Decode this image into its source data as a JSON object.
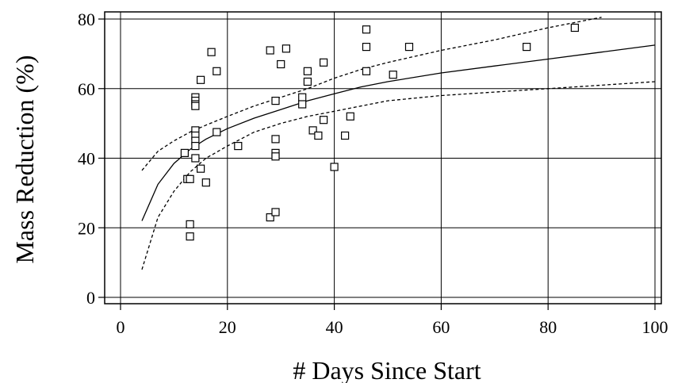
{
  "chart_data": {
    "type": "scatter",
    "title": "",
    "xlabel": "# Days Since Start",
    "ylabel": "Mass Reduction (%)",
    "xlim": [
      0,
      100
    ],
    "ylim": [
      0,
      80
    ],
    "x_ticks": [
      0,
      20,
      40,
      60,
      80,
      100
    ],
    "y_ticks": [
      0,
      20,
      40,
      60,
      80
    ],
    "grid": true,
    "legend": "none",
    "colors": {
      "ink": "#000000",
      "background": "#ffffff"
    },
    "series": [
      {
        "type": "scatter",
        "marker": "open-square",
        "points": [
          [
            12,
            41.5
          ],
          [
            12.5,
            34
          ],
          [
            13,
            21
          ],
          [
            13,
            17.5
          ],
          [
            13,
            34
          ],
          [
            14,
            57.5
          ],
          [
            14,
            56.5
          ],
          [
            14,
            55.5
          ],
          [
            14,
            55
          ],
          [
            14,
            48
          ],
          [
            14,
            46.5
          ],
          [
            14,
            45
          ],
          [
            14,
            43.5
          ],
          [
            14,
            40
          ],
          [
            15,
            37
          ],
          [
            15,
            62.5
          ],
          [
            16,
            33
          ],
          [
            17,
            70.5
          ],
          [
            18,
            65
          ],
          [
            18,
            47.5
          ],
          [
            22,
            43.5
          ],
          [
            28,
            71
          ],
          [
            28,
            23
          ],
          [
            29,
            24.5
          ],
          [
            29,
            56.5
          ],
          [
            29,
            45.5
          ],
          [
            29,
            41.5
          ],
          [
            29,
            40.5
          ],
          [
            30,
            67
          ],
          [
            31,
            71.5
          ],
          [
            34,
            57.5
          ],
          [
            34,
            55.5
          ],
          [
            35,
            65
          ],
          [
            35,
            62
          ],
          [
            36,
            48
          ],
          [
            37,
            46.5
          ],
          [
            38,
            67.5
          ],
          [
            38,
            51
          ],
          [
            40,
            37.5
          ],
          [
            42,
            46.5
          ],
          [
            43,
            52
          ],
          [
            46,
            77
          ],
          [
            46,
            72
          ],
          [
            46,
            65
          ],
          [
            51,
            64
          ],
          [
            54,
            72
          ],
          [
            76,
            72
          ],
          [
            85,
            77.5
          ]
        ]
      },
      {
        "type": "line",
        "style": "solid",
        "points": [
          [
            4,
            22
          ],
          [
            7,
            32.5
          ],
          [
            10,
            38.5
          ],
          [
            13,
            42.5
          ],
          [
            16,
            45.5
          ],
          [
            20,
            48.5
          ],
          [
            25,
            51.5
          ],
          [
            30,
            54
          ],
          [
            35,
            56.5
          ],
          [
            40,
            58.5
          ],
          [
            45,
            60.5
          ],
          [
            50,
            62
          ],
          [
            60,
            64.5
          ],
          [
            70,
            66.5
          ],
          [
            80,
            68.5
          ],
          [
            90,
            70.5
          ],
          [
            100,
            72.5
          ]
        ]
      },
      {
        "type": "line",
        "style": "dashed",
        "points": [
          [
            4,
            36.5
          ],
          [
            7,
            42
          ],
          [
            10,
            45
          ],
          [
            13,
            47.5
          ],
          [
            16,
            49.5
          ],
          [
            20,
            52
          ],
          [
            25,
            55
          ],
          [
            30,
            57.5
          ],
          [
            35,
            60
          ],
          [
            40,
            63
          ],
          [
            45,
            65.5
          ],
          [
            50,
            67.5
          ],
          [
            60,
            71
          ],
          [
            70,
            74
          ],
          [
            80,
            77.5
          ],
          [
            90,
            80.5
          ]
        ]
      },
      {
        "type": "line",
        "style": "dashed",
        "points": [
          [
            4,
            8
          ],
          [
            7,
            23
          ],
          [
            10,
            30.5
          ],
          [
            13,
            36
          ],
          [
            16,
            40
          ],
          [
            20,
            43.5
          ],
          [
            25,
            47.5
          ],
          [
            30,
            50
          ],
          [
            35,
            52
          ],
          [
            40,
            53.5
          ],
          [
            45,
            55
          ],
          [
            50,
            56.5
          ],
          [
            60,
            58
          ],
          [
            70,
            59
          ],
          [
            80,
            60
          ],
          [
            90,
            61
          ],
          [
            100,
            62
          ]
        ]
      }
    ]
  }
}
